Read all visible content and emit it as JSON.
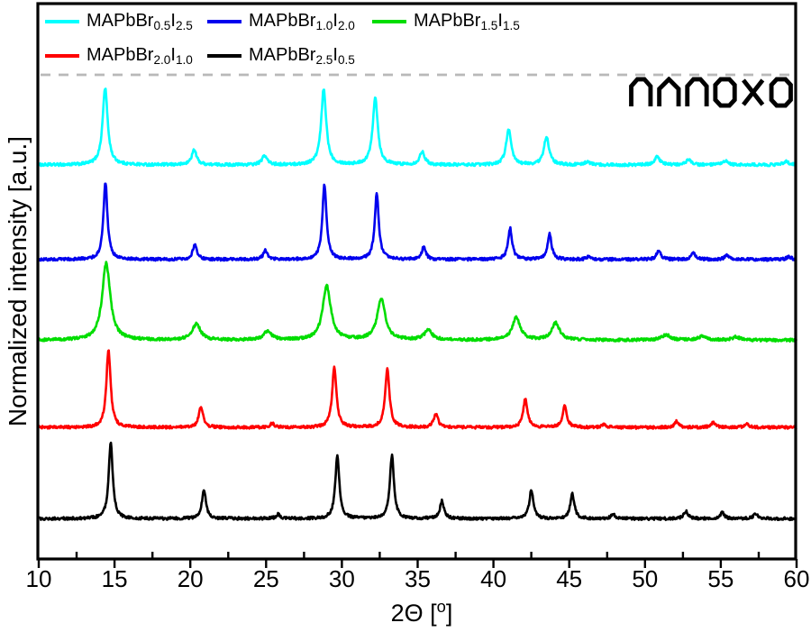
{
  "figure": {
    "watermark": "nanoxo",
    "x_axis_label": {
      "pre": "2Θ [",
      "sup": "o",
      "post": "]"
    },
    "frame_color": "#000000",
    "background": "#ffffff"
  },
  "legend": {
    "items": [
      {
        "name": "MAPbBr0.5I2.5",
        "base1": "MAPbBr",
        "sub1": "0.5",
        "base2": "I",
        "sub2": "2.5",
        "color": "#00ffff"
      },
      {
        "name": "MAPbBr1.0I2.0",
        "base1": "MAPbBr",
        "sub1": "1.0",
        "base2": "I",
        "sub2": "2.0",
        "color": "#0000ee"
      },
      {
        "name": "MAPbBr1.5I1.5",
        "base1": "MAPbBr",
        "sub1": "1.5",
        "base2": "I",
        "sub2": "1.5",
        "color": "#00dd00"
      },
      {
        "name": "MAPbBr2.0I1.0",
        "base1": "MAPbBr",
        "sub1": "2.0",
        "base2": "I",
        "sub2": "1.0",
        "color": "#ff0000"
      },
      {
        "name": "MAPbBr2.5I0.5",
        "base1": "MAPbBr",
        "sub1": "2.5",
        "base2": "I",
        "sub2": "0.5",
        "color": "#000000"
      }
    ]
  },
  "chart_data": {
    "type": "line",
    "title": "",
    "xlabel": "2Θ [°]",
    "ylabel": "Normalized intensity [a.u.]",
    "x_range": [
      10,
      60
    ],
    "x_ticks_major": [
      10,
      15,
      20,
      25,
      30,
      35,
      40,
      45,
      50,
      55,
      60
    ],
    "x_ticks_minor": [
      12.5,
      17.5,
      22.5,
      27.5,
      32.5,
      37.5,
      42.5,
      47.5,
      52.5,
      57.5
    ],
    "y_axis_note": "arbitrary units, no ticks, stacked offset XRD patterns",
    "grid": false,
    "legend_position": "inside top, two rows",
    "dashed_guide_line": {
      "y_norm": 0.872,
      "color": "#b9b9b9",
      "style": "dashed"
    },
    "amplitude_norm": 0.138,
    "series": [
      {
        "name": "MAPbBr0.5I2.5",
        "color": "#00ffff",
        "baseline_norm": 0.71,
        "hwhm_deg": 0.2,
        "peaks": [
          [
            14.38,
            1.0
          ],
          [
            20.25,
            0.19
          ],
          [
            24.9,
            0.12
          ],
          [
            28.8,
            0.98
          ],
          [
            32.2,
            0.88
          ],
          [
            35.3,
            0.17
          ],
          [
            41.0,
            0.46
          ],
          [
            43.5,
            0.37
          ],
          [
            46.2,
            0.04
          ],
          [
            50.8,
            0.11
          ],
          [
            52.9,
            0.07
          ],
          [
            55.3,
            0.05
          ],
          [
            59.3,
            0.05
          ]
        ]
      },
      {
        "name": "MAPbBr1.0I2.0",
        "color": "#0000ee",
        "baseline_norm": 0.54,
        "hwhm_deg": 0.16,
        "peaks": [
          [
            14.4,
            1.0
          ],
          [
            20.3,
            0.2
          ],
          [
            24.95,
            0.12
          ],
          [
            28.85,
            0.97
          ],
          [
            32.3,
            0.85
          ],
          [
            35.4,
            0.16
          ],
          [
            41.1,
            0.41
          ],
          [
            43.7,
            0.33
          ],
          [
            46.3,
            0.04
          ],
          [
            50.9,
            0.12
          ],
          [
            53.2,
            0.09
          ],
          [
            55.4,
            0.06
          ],
          [
            59.5,
            0.04
          ]
        ]
      },
      {
        "name": "MAPbBr1.5I1.5",
        "color": "#00dd00",
        "baseline_norm": 0.395,
        "hwhm_deg": 0.32,
        "peaks": [
          [
            14.45,
            1.0
          ],
          [
            20.4,
            0.21
          ],
          [
            25.1,
            0.11
          ],
          [
            29.0,
            0.7
          ],
          [
            32.6,
            0.53
          ],
          [
            35.7,
            0.12
          ],
          [
            41.5,
            0.29
          ],
          [
            44.1,
            0.22
          ],
          [
            51.4,
            0.07
          ],
          [
            53.8,
            0.05
          ],
          [
            56.0,
            0.04
          ]
        ]
      },
      {
        "name": "MAPbBr2.0I1.0",
        "color": "#ff0000",
        "baseline_norm": 0.238,
        "hwhm_deg": 0.17,
        "peaks": [
          [
            14.6,
            1.0
          ],
          [
            20.7,
            0.27
          ],
          [
            25.4,
            0.05
          ],
          [
            29.5,
            0.78
          ],
          [
            33.0,
            0.76
          ],
          [
            36.2,
            0.18
          ],
          [
            42.1,
            0.37
          ],
          [
            44.7,
            0.28
          ],
          [
            47.3,
            0.04
          ],
          [
            52.1,
            0.08
          ],
          [
            54.5,
            0.07
          ],
          [
            56.7,
            0.05
          ]
        ]
      },
      {
        "name": "MAPbBr2.5I0.5",
        "color": "#000000",
        "baseline_norm": 0.074,
        "hwhm_deg": 0.16,
        "peaks": [
          [
            14.75,
            1.0
          ],
          [
            20.9,
            0.37
          ],
          [
            25.8,
            0.06
          ],
          [
            29.7,
            0.83
          ],
          [
            33.3,
            0.82
          ],
          [
            36.6,
            0.23
          ],
          [
            42.5,
            0.37
          ],
          [
            45.2,
            0.33
          ],
          [
            47.9,
            0.06
          ],
          [
            52.7,
            0.1
          ],
          [
            55.1,
            0.08
          ],
          [
            57.3,
            0.07
          ]
        ]
      }
    ]
  }
}
